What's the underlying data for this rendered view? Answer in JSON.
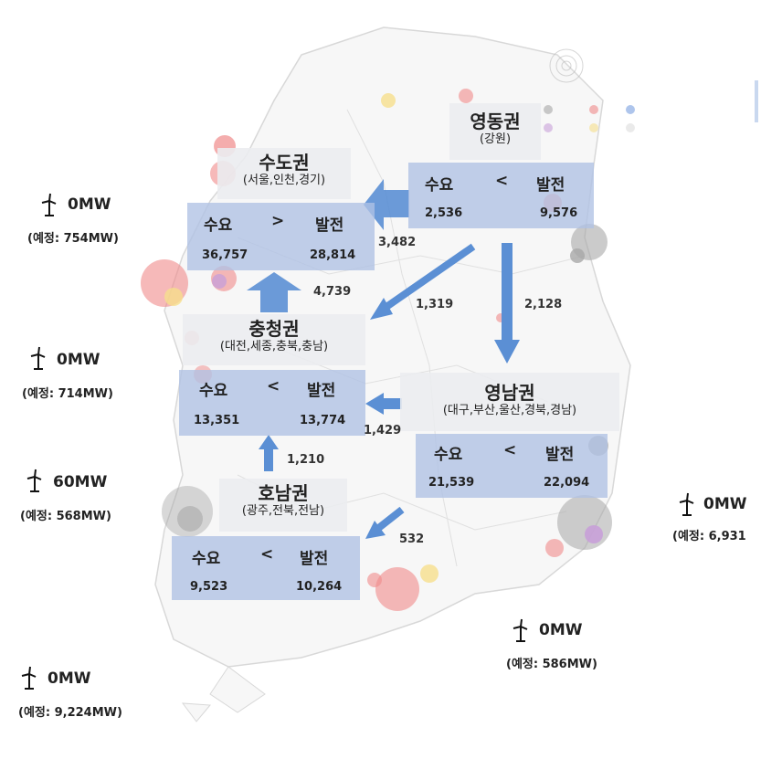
{
  "map_legend": {
    "items": [
      "",
      "",
      ""
    ]
  },
  "regions": {
    "sudo": {
      "name": "수도권",
      "sub": "(서울,인천,경기)",
      "demand_label": "수요",
      "op": ">",
      "gen_label": "발전",
      "demand": "36,757",
      "generation": "28,814"
    },
    "yeongdong": {
      "name": "영동권",
      "sub": "(강원)",
      "demand_label": "수요",
      "op": "<",
      "gen_label": "발전",
      "demand": "2,536",
      "generation": "9,576"
    },
    "chungcheong": {
      "name": "충청권",
      "sub": "(대전,세종,충북,충남)",
      "demand_label": "수요",
      "op": "<",
      "gen_label": "발전",
      "demand": "13,351",
      "generation": "13,774"
    },
    "yeongnam": {
      "name": "영남권",
      "sub": "(대구,부산,울산,경북,경남)",
      "demand_label": "수요",
      "op": "<",
      "gen_label": "발전",
      "demand": "21,539",
      "generation": "22,094"
    },
    "honam": {
      "name": "호남권",
      "sub": "(광주,전북,전남)",
      "demand_label": "수요",
      "op": "<",
      "gen_label": "발전",
      "demand": "9,523",
      "generation": "10,264"
    }
  },
  "flows": {
    "yeongdong_to_sudo": "3,482",
    "chungcheong_to_sudo": "4,739",
    "yeongdong_to_chungcheong": "1,319",
    "yeongdong_to_yeongnam": "2,128",
    "yeongnam_to_chungcheong": "1,429",
    "honam_to_chungcheong": "1,210",
    "yeongnam_to_honam": "532"
  },
  "wind": [
    {
      "id": "sudo",
      "capacity": "0MW",
      "planned": "(예정: 754MW)"
    },
    {
      "id": "chungcheong",
      "capacity": "0MW",
      "planned": "(예정: 714MW)"
    },
    {
      "id": "honam",
      "capacity": "60MW",
      "planned": "(예정: 568MW)"
    },
    {
      "id": "jeju",
      "capacity": "0MW",
      "planned": "(예정: 9,224MW)"
    },
    {
      "id": "yeongnam-south",
      "capacity": "0MW",
      "planned": "(예정: 586MW)"
    },
    {
      "id": "east",
      "capacity": "0MW",
      "planned": "(예정: 6,931"
    }
  ],
  "colors": {
    "box": "#b0c2e4",
    "arrow": "#5b8fd4",
    "bubble_red": "#f08a8a",
    "bubble_gray": "#a8a8a8",
    "bubble_yellow": "#f6df8c",
    "bubble_purple": "#c8a0d8",
    "map_line": "#d5d5d5"
  }
}
